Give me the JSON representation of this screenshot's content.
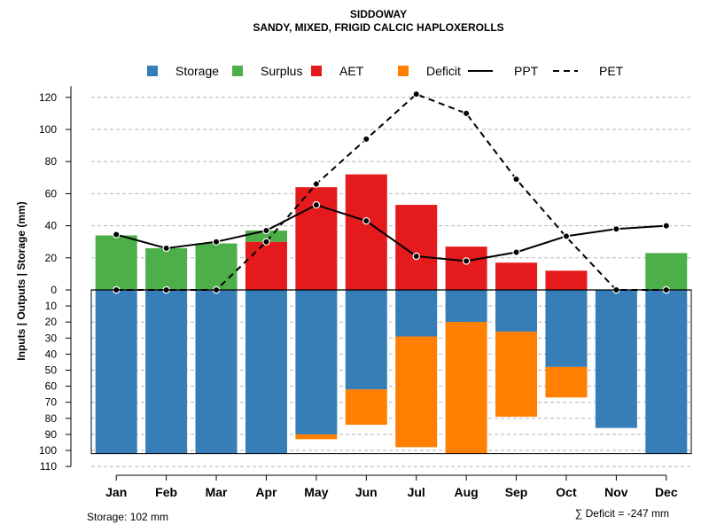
{
  "chart_data": {
    "type": "bar",
    "title": "SIDDOWAY",
    "subtitle": "SANDY, MIXED, FRIGID CALCIC HAPLOXEROLLS",
    "ylabel": "Inputs | Outputs | Storage    (mm)",
    "categories": [
      "Jan",
      "Feb",
      "Mar",
      "Apr",
      "May",
      "Jun",
      "Jul",
      "Aug",
      "Sep",
      "Oct",
      "Nov",
      "Dec"
    ],
    "upper_ylim": [
      0,
      120
    ],
    "upper_ticks": [
      "0",
      "20",
      "40",
      "60",
      "80",
      "100",
      "120"
    ],
    "lower_ylim": [
      0,
      110
    ],
    "lower_ticks": [
      "0",
      "10",
      "20",
      "30",
      "40",
      "50",
      "60",
      "70",
      "80",
      "90",
      "100",
      "110"
    ],
    "series": [
      {
        "name": "Storage",
        "color": "#377EB8",
        "values": [
          102,
          102,
          102,
          102,
          90,
          62,
          29,
          20,
          26,
          48,
          86,
          102
        ]
      },
      {
        "name": "Surplus",
        "color": "#4DAF4A",
        "values": [
          34,
          26,
          29,
          7,
          0,
          0,
          0,
          0,
          0,
          0,
          0,
          23
        ]
      },
      {
        "name": "AET",
        "color": "#E41A1C",
        "values": [
          0,
          0,
          0,
          30,
          64,
          72,
          53,
          27,
          17,
          12,
          0,
          0
        ]
      },
      {
        "name": "Deficit",
        "color": "#FF7F00",
        "values": [
          0,
          0,
          0,
          0,
          3,
          22,
          69,
          82,
          53,
          19,
          0,
          0
        ]
      },
      {
        "name": "PPT",
        "color": "#000000",
        "values": [
          34.5,
          26,
          30,
          37,
          53,
          43,
          21,
          18,
          23.5,
          33.5,
          38,
          40
        ]
      },
      {
        "name": "PET",
        "color": "#000000",
        "values": [
          0,
          0,
          0,
          30,
          66,
          94,
          122,
          110,
          69,
          33,
          0,
          0
        ]
      }
    ],
    "legend": [
      {
        "label": "Storage",
        "color": "#377EB8",
        "kind": "square"
      },
      {
        "label": "Surplus",
        "color": "#4DAF4A",
        "kind": "square"
      },
      {
        "label": "AET",
        "color": "#E41A1C",
        "kind": "square"
      },
      {
        "label": "Deficit",
        "color": "#FF7F00",
        "kind": "square"
      },
      {
        "label": "PPT",
        "color": "#000000",
        "kind": "solid-line"
      },
      {
        "label": "PET",
        "color": "#000000",
        "kind": "dashed-line"
      }
    ],
    "legend_placement": "top-center",
    "grid": true,
    "storage_label": "Storage: 102 mm",
    "deficit_label": "∑ Deficit = -247 mm"
  }
}
